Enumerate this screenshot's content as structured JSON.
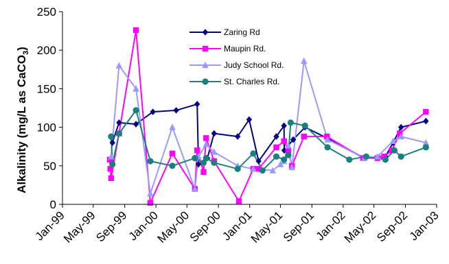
{
  "chart_data": {
    "type": "line",
    "title": "",
    "xlabel": "",
    "ylabel": "Alkalinity (mg/L as CaCO",
    "ylabel_sub": "3",
    "ylabel_close": ")",
    "ylim": [
      0,
      250
    ],
    "yticks": [
      0,
      50,
      100,
      150,
      200,
      250
    ],
    "xlim": [
      "1999-01-01",
      "2003-01-01"
    ],
    "xticks": [
      {
        "date": "1999-01-01",
        "label": "Jan-99"
      },
      {
        "date": "1999-05-01",
        "label": "May-99"
      },
      {
        "date": "1999-09-01",
        "label": "Sep-99"
      },
      {
        "date": "2000-01-01",
        "label": "Jan-00"
      },
      {
        "date": "2000-05-01",
        "label": "May-00"
      },
      {
        "date": "2000-09-01",
        "label": "Sep-00"
      },
      {
        "date": "2001-01-01",
        "label": "Jan-01"
      },
      {
        "date": "2001-05-01",
        "label": "May-01"
      },
      {
        "date": "2001-09-01",
        "label": "Sep-01"
      },
      {
        "date": "2002-01-01",
        "label": "Jan-02"
      },
      {
        "date": "2002-05-01",
        "label": "May-02"
      },
      {
        "date": "2002-09-01",
        "label": "Sep-02"
      },
      {
        "date": "2003-01-01",
        "label": "Jan-03"
      }
    ],
    "grid": false,
    "legend_position": "top-center",
    "series": [
      {
        "name": "Zaring Rd",
        "color": "#000080",
        "marker": "diamond",
        "points": [
          [
            "1999-07-15",
            80
          ],
          [
            "1999-08-10",
            106
          ],
          [
            "1999-10-15",
            104
          ],
          [
            "1999-12-20",
            120
          ],
          [
            "2000-03-20",
            122
          ],
          [
            "2000-06-10",
            130
          ],
          [
            "2000-06-15",
            52
          ],
          [
            "2000-07-20",
            60
          ],
          [
            "2000-08-15",
            92
          ],
          [
            "2000-11-15",
            88
          ],
          [
            "2000-12-30",
            110
          ],
          [
            "2001-02-05",
            56
          ],
          [
            "2001-04-15",
            88
          ],
          [
            "2001-05-15",
            102
          ],
          [
            "2001-05-16",
            70
          ],
          [
            "2001-06-20",
            84
          ],
          [
            "2001-08-05",
            100
          ],
          [
            "2001-10-30",
            86
          ],
          [
            "2002-03-25",
            60
          ],
          [
            "2002-06-15",
            62
          ],
          [
            "2002-07-15",
            80
          ],
          [
            "2002-08-15",
            100
          ],
          [
            "2002-11-20",
            108
          ]
        ]
      },
      {
        "name": "Maupin Rd.",
        "color": "#ff00ff",
        "marker": "square",
        "points": [
          [
            "1999-07-05",
            58
          ],
          [
            "1999-07-07",
            46
          ],
          [
            "1999-07-10",
            34
          ],
          [
            "1999-08-10",
            92
          ],
          [
            "1999-10-15",
            226
          ],
          [
            "1999-12-10",
            2
          ],
          [
            "2000-03-05",
            66
          ],
          [
            "2000-06-01",
            20
          ],
          [
            "2000-06-10",
            70
          ],
          [
            "2000-07-05",
            42
          ],
          [
            "2000-07-15",
            86
          ],
          [
            "2000-08-15",
            56
          ],
          [
            "2000-11-20",
            4
          ],
          [
            "2001-01-15",
            46
          ],
          [
            "2001-02-05",
            46
          ],
          [
            "2001-04-15",
            74
          ],
          [
            "2001-05-15",
            82
          ],
          [
            "2001-06-01",
            70
          ],
          [
            "2001-06-15",
            50
          ],
          [
            "2001-08-01",
            88
          ],
          [
            "2001-10-30",
            88
          ],
          [
            "2002-03-20",
            60
          ],
          [
            "2002-05-15",
            60
          ],
          [
            "2002-06-10",
            62
          ],
          [
            "2002-07-10",
            70
          ],
          [
            "2002-08-10",
            92
          ],
          [
            "2002-11-20",
            120
          ]
        ]
      },
      {
        "name": "Judy School Rd.",
        "color": "#9999ff",
        "marker": "triangle",
        "points": [
          [
            "1999-07-10",
            62
          ],
          [
            "1999-08-10",
            180
          ],
          [
            "1999-10-15",
            150
          ],
          [
            "1999-12-10",
            14
          ],
          [
            "2000-03-05",
            100
          ],
          [
            "2000-06-01",
            20
          ],
          [
            "2000-06-15",
            62
          ],
          [
            "2000-07-15",
            78
          ],
          [
            "2000-08-15",
            68
          ],
          [
            "2000-11-15",
            50
          ],
          [
            "2001-01-15",
            46
          ],
          [
            "2001-04-01",
            44
          ],
          [
            "2001-05-01",
            52
          ],
          [
            "2001-05-15",
            56
          ],
          [
            "2001-06-01",
            76
          ],
          [
            "2001-06-15",
            48
          ],
          [
            "2001-08-01",
            186
          ],
          [
            "2001-11-01",
            84
          ],
          [
            "2002-03-25",
            60
          ],
          [
            "2002-05-15",
            62
          ],
          [
            "2002-07-15",
            82
          ],
          [
            "2002-08-15",
            88
          ],
          [
            "2002-11-20",
            80
          ]
        ]
      },
      {
        "name": "St. Charles Rd.",
        "color": "#1a7f7f",
        "marker": "circle",
        "points": [
          [
            "1999-07-10",
            88
          ],
          [
            "1999-07-15",
            52
          ],
          [
            "1999-08-10",
            92
          ],
          [
            "1999-10-15",
            122
          ],
          [
            "1999-12-10",
            56
          ],
          [
            "2000-03-05",
            50
          ],
          [
            "2000-06-01",
            60
          ],
          [
            "2000-07-05",
            54
          ],
          [
            "2000-07-15",
            60
          ],
          [
            "2000-08-15",
            54
          ],
          [
            "2000-11-15",
            46
          ],
          [
            "2001-01-15",
            66
          ],
          [
            "2001-02-20",
            44
          ],
          [
            "2001-04-15",
            62
          ],
          [
            "2001-05-15",
            58
          ],
          [
            "2001-06-01",
            64
          ],
          [
            "2001-06-10",
            106
          ],
          [
            "2001-08-05",
            102
          ],
          [
            "2001-11-01",
            74
          ],
          [
            "2002-01-25",
            58
          ],
          [
            "2002-04-01",
            62
          ],
          [
            "2002-06-15",
            58
          ],
          [
            "2002-07-20",
            70
          ],
          [
            "2002-08-15",
            62
          ],
          [
            "2002-11-20",
            74
          ]
        ]
      }
    ]
  }
}
